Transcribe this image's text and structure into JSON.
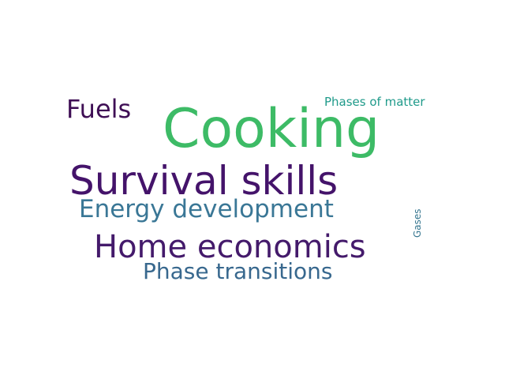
{
  "words": [
    {
      "text": "Cooking",
      "color": "#3dbb66"
    },
    {
      "text": "Survival skills",
      "color": "#44136a"
    },
    {
      "text": "Energy development",
      "color": "#3a7796"
    },
    {
      "text": "Home economics",
      "color": "#441a6b"
    },
    {
      "text": "Phase transitions",
      "color": "#38688e"
    },
    {
      "text": "Fuels",
      "color": "#3f0f55"
    },
    {
      "text": "Phases of matter",
      "color": "#1f9a8a"
    },
    {
      "text": "Gases",
      "color": "#33748e"
    }
  ]
}
